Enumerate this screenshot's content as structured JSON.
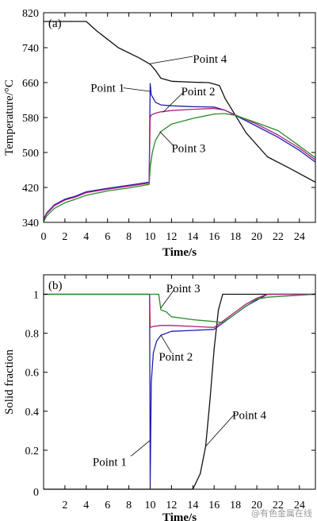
{
  "watermark": "@有色金属在线",
  "chart_data": [
    {
      "type": "line",
      "panel_label": "(a)",
      "xlabel": "Time/s",
      "ylabel": "Temperature/°C",
      "xlim": [
        0,
        25.5
      ],
      "ylim": [
        340,
        820
      ],
      "xticks": [
        0,
        2,
        4,
        6,
        8,
        10,
        12,
        14,
        16,
        18,
        20,
        22,
        24
      ],
      "yticks": [
        340,
        420,
        500,
        580,
        660,
        740,
        820
      ],
      "grid": false,
      "colors": {
        "axis": "#000000"
      },
      "series": [
        {
          "name": "Point 4",
          "color": "#111111",
          "x": [
            0,
            4,
            5,
            7,
            9,
            10,
            10.5,
            11,
            12,
            14,
            15.5,
            16.5,
            17,
            18,
            19,
            21,
            23,
            25.5
          ],
          "y": [
            800,
            800,
            778,
            740,
            716,
            702,
            688,
            670,
            663,
            661,
            660,
            653,
            625,
            585,
            545,
            490,
            465,
            432
          ]
        },
        {
          "name": "Point 1",
          "color": "#1f1fb0",
          "x": [
            0,
            0.3,
            1,
            2,
            3,
            4,
            6,
            8,
            9.9,
            10.0,
            10.1,
            10.5,
            11,
            12,
            14,
            16,
            17,
            18,
            20,
            22,
            24,
            25.5
          ],
          "y": [
            348,
            362,
            380,
            393,
            400,
            410,
            418,
            425,
            432,
            658,
            632,
            615,
            609,
            607,
            605,
            604,
            597,
            585,
            560,
            535,
            505,
            478
          ]
        },
        {
          "name": "Point 2",
          "color": "#b01f7a",
          "x": [
            0,
            0.3,
            1,
            2,
            3,
            4,
            6,
            8,
            9.9,
            10.0,
            10.1,
            10.5,
            11,
            12,
            14,
            16,
            17,
            18,
            20,
            22,
            24,
            25.5
          ],
          "y": [
            346,
            360,
            378,
            391,
            398,
            408,
            416,
            423,
            430,
            580,
            586,
            590,
            593,
            596,
            599,
            601,
            597,
            586,
            565,
            540,
            510,
            483
          ]
        },
        {
          "name": "Point 3",
          "color": "#2a8a2a",
          "x": [
            0,
            0.3,
            1,
            2,
            3,
            4,
            6,
            8,
            9.9,
            10.0,
            10.2,
            10.5,
            11,
            12,
            14,
            16,
            17,
            18,
            20,
            22,
            24,
            25.5
          ],
          "y": [
            342,
            355,
            372,
            385,
            393,
            402,
            412,
            419,
            427,
            465,
            500,
            528,
            548,
            565,
            578,
            588,
            589,
            585,
            568,
            550,
            515,
            488
          ]
        }
      ],
      "annotations": [
        {
          "text": "Point 4",
          "x": 15.6,
          "y": 715
        },
        {
          "text": "Point 1",
          "x": 6.0,
          "y": 648
        },
        {
          "text": "Point 2",
          "x": 14.5,
          "y": 640
        },
        {
          "text": "Point 3",
          "x": 13.6,
          "y": 510
        }
      ]
    },
    {
      "type": "line",
      "panel_label": "(b)",
      "xlabel": "Time/s",
      "ylabel": "Solid fraction",
      "xlim": [
        0,
        25.5
      ],
      "ylim": [
        0,
        1.1
      ],
      "xticks": [
        2,
        4,
        6,
        8,
        10,
        12,
        14,
        16,
        18,
        20,
        22,
        24
      ],
      "yticks": [
        0.2,
        0.4,
        0.6,
        0.8,
        1.0
      ],
      "y_zero_label": "0",
      "grid": false,
      "colors": {
        "axis": "#000000"
      },
      "series": [
        {
          "name": "Point 4",
          "color": "#111111",
          "x": [
            0,
            14.0,
            14.7,
            15.2,
            15.6,
            16.0,
            16.4,
            16.8,
            25.5
          ],
          "y": [
            0,
            0,
            0.08,
            0.22,
            0.45,
            0.72,
            0.92,
            1.0,
            1.0
          ]
        },
        {
          "name": "Point 1",
          "color": "#1f1fb0",
          "x": [
            0,
            9.95,
            10.0,
            10.1,
            10.3,
            10.6,
            11,
            12,
            14,
            16,
            17,
            18,
            19,
            20,
            21,
            25.5
          ],
          "y": [
            1.0,
            1.0,
            0.02,
            0.55,
            0.7,
            0.76,
            0.79,
            0.81,
            0.815,
            0.82,
            0.86,
            0.9,
            0.94,
            0.97,
            1.0,
            1.0
          ]
        },
        {
          "name": "Point 2",
          "color": "#b01f7a",
          "x": [
            0,
            9.95,
            10.0,
            10.3,
            11,
            12,
            14,
            16,
            17,
            18,
            19,
            20,
            21,
            25.5
          ],
          "y": [
            1.0,
            1.0,
            0.83,
            0.835,
            0.84,
            0.84,
            0.835,
            0.83,
            0.87,
            0.91,
            0.95,
            0.98,
            1.0,
            1.0
          ]
        },
        {
          "name": "Point 3",
          "color": "#2a8a2a",
          "x": [
            0,
            10.8,
            11.0,
            11.5,
            12,
            14,
            16,
            16.8,
            18,
            19,
            20,
            21,
            25.5
          ],
          "y": [
            1.0,
            1.0,
            0.92,
            0.91,
            0.885,
            0.87,
            0.86,
            0.855,
            0.9,
            0.94,
            0.975,
            0.985,
            1.0
          ]
        }
      ],
      "annotations": [
        {
          "text": "Point 3",
          "x": 13.1,
          "y": 1.03
        },
        {
          "text": "Point 2",
          "x": 12.4,
          "y": 0.68
        },
        {
          "text": "Point 1",
          "x": 6.2,
          "y": 0.14
        },
        {
          "text": "Point 4",
          "x": 19.3,
          "y": 0.38
        }
      ]
    }
  ]
}
